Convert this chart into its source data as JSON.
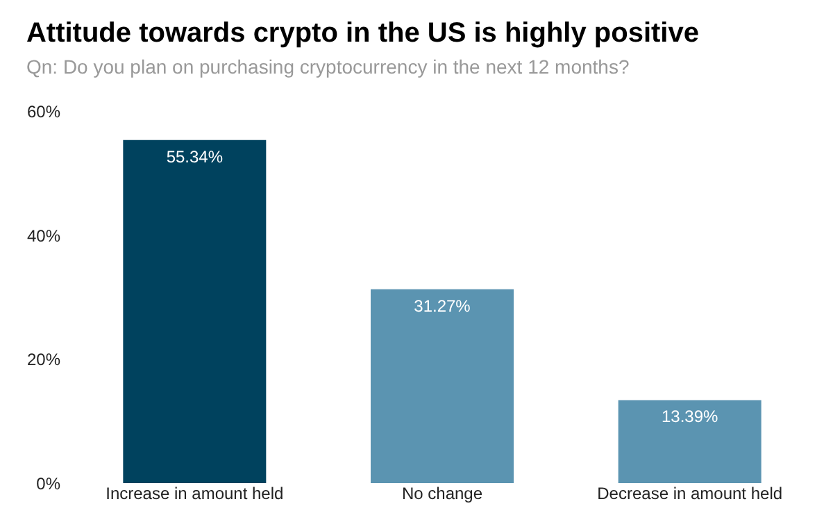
{
  "chart_data": {
    "type": "bar",
    "title": "Attitude towards crypto in the US is highly positive",
    "subtitle": "Qn: Do you plan on purchasing cryptocurrency in the next 12 months?",
    "categories": [
      "Increase in amount held",
      "No change",
      "Decrease in amount held"
    ],
    "values": [
      55.34,
      31.27,
      13.39
    ],
    "colors": [
      "#00425e",
      "#5b94b1",
      "#5b94b1"
    ],
    "value_labels": [
      "55.34%",
      "31.27%",
      "13.39%"
    ],
    "ylim": [
      0,
      60
    ],
    "yticks": [
      {
        "value": 0,
        "label": "0%"
      },
      {
        "value": 20,
        "label": "20%"
      },
      {
        "value": 40,
        "label": "40%"
      },
      {
        "value": 60,
        "label": "60%"
      }
    ],
    "grid": false
  }
}
